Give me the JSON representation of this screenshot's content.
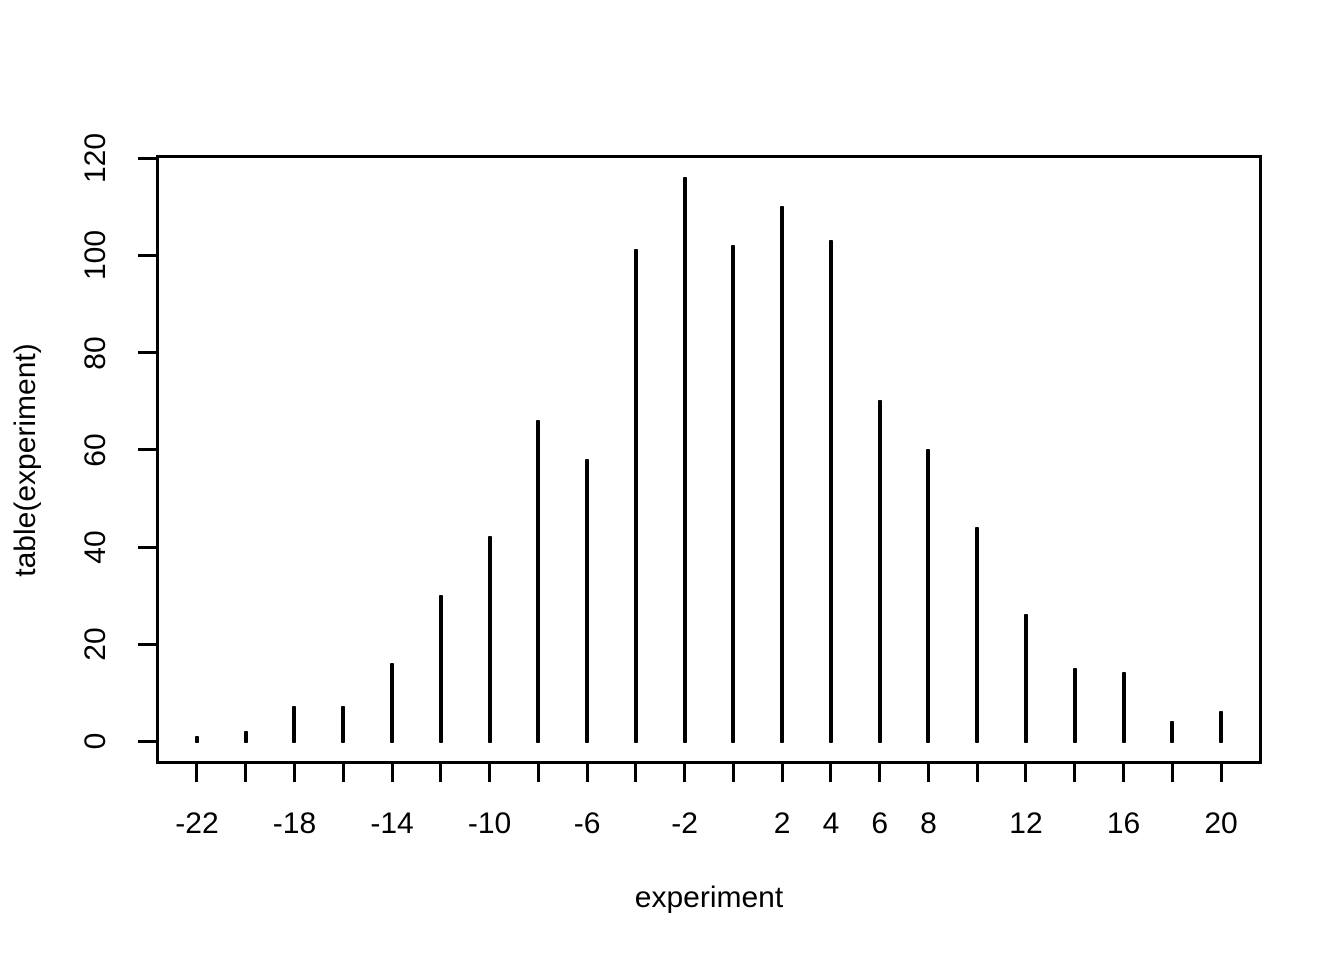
{
  "chart_data": {
    "type": "bar",
    "style": "spike-plot (R plot of a frequency table, thin vertical lines)",
    "categories": [
      -22,
      -20,
      -18,
      -16,
      -14,
      -12,
      -10,
      -8,
      -6,
      -4,
      -2,
      0,
      2,
      4,
      6,
      8,
      10,
      12,
      14,
      16,
      18,
      20
    ],
    "values": [
      1,
      2,
      7,
      7,
      16,
      30,
      42,
      66,
      58,
      101,
      116,
      102,
      110,
      103,
      70,
      60,
      44,
      26,
      15,
      14,
      4,
      6
    ],
    "title": "",
    "xlabel": "experiment",
    "ylabel": "table(experiment)",
    "x_tick_labels_shown": [
      "-22",
      "-18",
      "-14",
      "-10",
      "-6",
      "-2",
      "2",
      "4",
      "6",
      "8",
      "12",
      "16",
      "20"
    ],
    "y_ticks": [
      0,
      20,
      40,
      60,
      80,
      100,
      120
    ],
    "xlim": [
      -23.68,
      21.68
    ],
    "ylim": [
      -4.64,
      120.64
    ],
    "bar_color": "#000000",
    "axis_color": "#000000",
    "background_color": "#ffffff",
    "grid": false,
    "legend": false
  }
}
